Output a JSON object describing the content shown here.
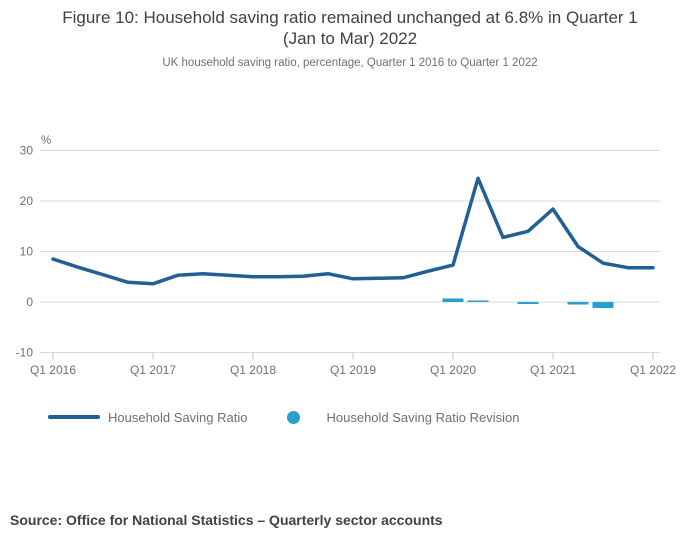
{
  "page": {
    "title": "Figure 10: Household saving ratio remained unchanged at 6.8% in Quarter 1 (Jan to Mar) 2022",
    "subtitle": "UK household saving ratio, percentage, Quarter 1 2016 to Quarter 1 2022",
    "source": "Source: Office for National Statistics – Quarterly sector accounts"
  },
  "legend": {
    "series1_label": "Household Saving Ratio",
    "series2_label": "Household Saving Ratio Revision"
  },
  "colors": {
    "title_text": "#414042",
    "muted_text": "#707071",
    "gridline": "#d9d9d9",
    "tick_mark": "#c6c6c6",
    "line_series": "#206095",
    "bar_series": "#27a0cc"
  },
  "chart_data": {
    "type": "line",
    "title": "Figure 10: Household saving ratio remained unchanged at 6.8% in Quarter 1 (Jan to Mar) 2022",
    "subtitle": "UK household saving ratio, percentage, Quarter 1 2016 to Quarter 1 2022",
    "xlabel": "",
    "ylabel": "%",
    "ylim": [
      -10,
      30
    ],
    "yticks": [
      30,
      20,
      10,
      0,
      -10
    ],
    "grid": "horizontal",
    "legend_position": "bottom",
    "categories": [
      "Q1 2016",
      "Q2 2016",
      "Q3 2016",
      "Q4 2016",
      "Q1 2017",
      "Q2 2017",
      "Q3 2017",
      "Q4 2017",
      "Q1 2018",
      "Q2 2018",
      "Q3 2018",
      "Q4 2018",
      "Q1 2019",
      "Q2 2019",
      "Q3 2019",
      "Q4 2019",
      "Q1 2020",
      "Q2 2020",
      "Q3 2020",
      "Q4 2020",
      "Q1 2021",
      "Q2 2021",
      "Q3 2021",
      "Q4 2021",
      "Q1 2022"
    ],
    "x_tick_labels": [
      "Q1 2016",
      "Q1 2017",
      "Q1 2018",
      "Q1 2019",
      "Q1 2020",
      "Q1 2021",
      "Q1 2022"
    ],
    "series": [
      {
        "name": "Household Saving Ratio",
        "type": "line",
        "color": "#206095",
        "values": [
          8.5,
          6.9,
          5.4,
          3.9,
          3.6,
          5.3,
          5.6,
          5.3,
          5.0,
          5.0,
          5.1,
          5.6,
          4.6,
          4.7,
          4.8,
          6.1,
          7.3,
          24.5,
          12.8,
          14.0,
          18.4,
          11.0,
          7.7,
          6.8,
          6.8
        ]
      },
      {
        "name": "Household Saving Ratio Revision",
        "type": "bar",
        "color": "#27a0cc",
        "values": [
          null,
          null,
          null,
          null,
          null,
          null,
          null,
          null,
          null,
          null,
          null,
          null,
          null,
          null,
          null,
          null,
          0.7,
          0.3,
          null,
          -0.4,
          null,
          -0.5,
          -1.2,
          null,
          null
        ]
      }
    ]
  }
}
